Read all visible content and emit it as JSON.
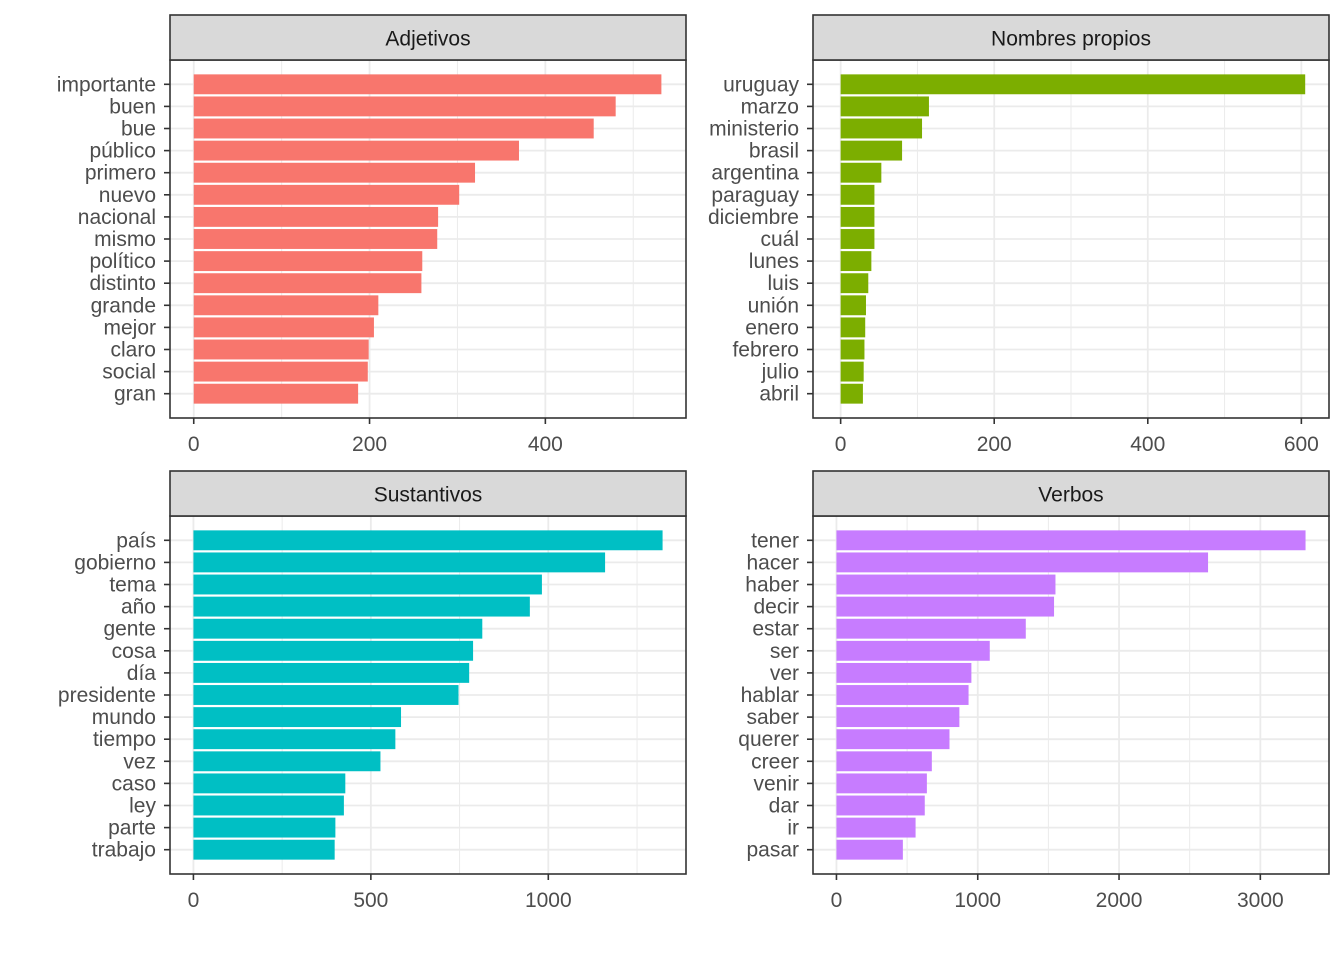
{
  "chart_data": [
    {
      "type": "bar",
      "orientation": "horizontal",
      "title": "Adjetivos",
      "color": "#F8766D",
      "categories": [
        "importante",
        "buen",
        "bue",
        "público",
        "primero",
        "nuevo",
        "nacional",
        "mismo",
        "político",
        "distinto",
        "grande",
        "mejor",
        "claro",
        "social",
        "gran"
      ],
      "values": [
        532,
        480,
        455,
        370,
        320,
        302,
        278,
        277,
        260,
        259,
        210,
        205,
        199,
        198,
        187
      ],
      "xlim": [
        -27,
        560
      ],
      "xticks": [
        0,
        200,
        400
      ],
      "xlabel": "",
      "ylabel": "",
      "grid": true,
      "legend": "none"
    },
    {
      "type": "bar",
      "orientation": "horizontal",
      "title": "Nombres propios",
      "color": "#7CAE00",
      "categories": [
        "uruguay",
        "marzo",
        "ministerio",
        "brasil",
        "argentina",
        "paraguay",
        "diciembre",
        "cuál",
        "lunes",
        "luis",
        "unión",
        "enero",
        "febrero",
        "julio",
        "abril"
      ],
      "values": [
        605,
        115,
        106,
        80,
        53,
        44,
        44,
        44,
        40,
        36,
        33,
        32,
        31,
        30,
        29
      ],
      "xlim": [
        -36,
        636
      ],
      "xticks": [
        0,
        200,
        400,
        600
      ],
      "xlabel": "",
      "ylabel": "",
      "grid": true,
      "legend": "none"
    },
    {
      "type": "bar",
      "orientation": "horizontal",
      "title": "Sustantivos",
      "color": "#00BFC4",
      "categories": [
        "país",
        "gobierno",
        "tema",
        "año",
        "gente",
        "cosa",
        "día",
        "presidente",
        "mundo",
        "tiempo",
        "vez",
        "caso",
        "ley",
        "parte",
        "trabajo"
      ],
      "values": [
        1322,
        1160,
        982,
        948,
        814,
        788,
        777,
        747,
        585,
        569,
        527,
        428,
        424,
        400,
        398
      ],
      "xlim": [
        -66,
        1388
      ],
      "xticks": [
        0,
        500,
        1000
      ],
      "xlabel": "",
      "ylabel": "",
      "grid": true,
      "legend": "none"
    },
    {
      "type": "bar",
      "orientation": "horizontal",
      "title": "Verbos",
      "color": "#C77CFF",
      "categories": [
        "tener",
        "hacer",
        "haber",
        "decir",
        "estar",
        "ser",
        "ver",
        "hablar",
        "saber",
        "querer",
        "creer",
        "venir",
        "dar",
        "ir",
        "pasar"
      ],
      "values": [
        3320,
        2630,
        1550,
        1540,
        1340,
        1085,
        955,
        935,
        870,
        800,
        675,
        640,
        625,
        560,
        470
      ],
      "xlim": [
        -166,
        3486
      ],
      "xticks": [
        0,
        1000,
        2000,
        3000
      ],
      "xlabel": "",
      "ylabel": "",
      "grid": true,
      "legend": "none"
    }
  ]
}
